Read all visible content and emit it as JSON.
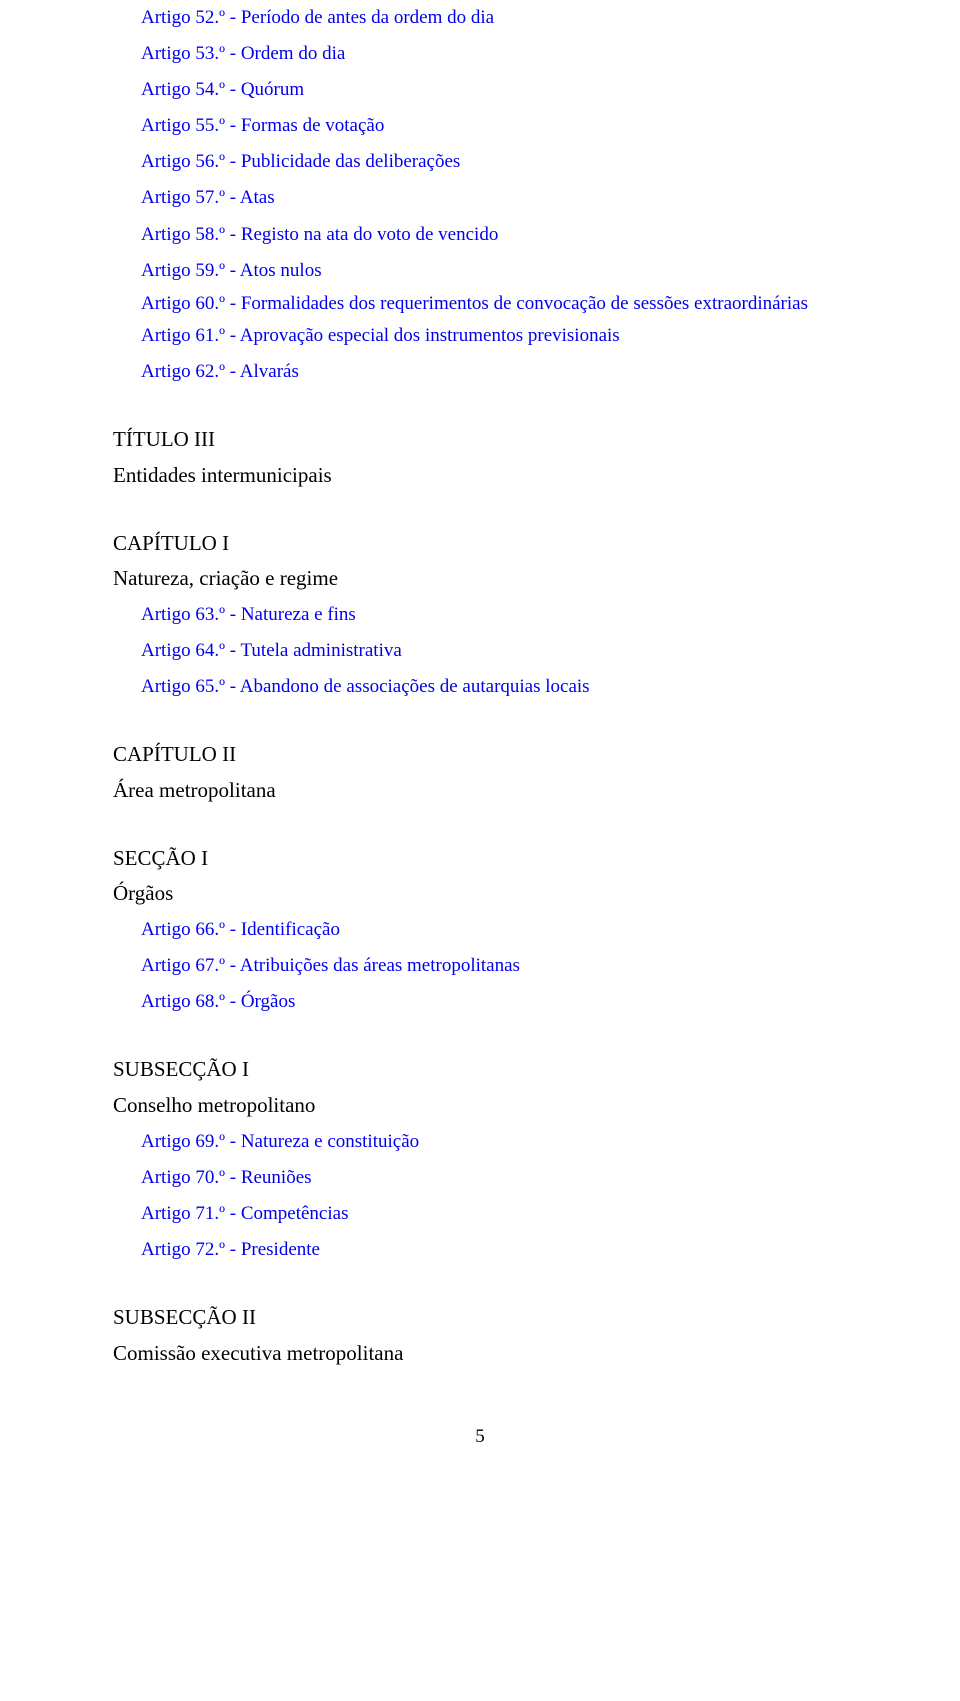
{
  "articles_top": [
    "Artigo 52.º - Período de antes da ordem do dia",
    "Artigo 53.º - Ordem do dia",
    "Artigo 54.º - Quórum",
    "Artigo 55.º - Formas de votação",
    "Artigo 56.º - Publicidade das deliberações",
    "Artigo 57.º - Atas",
    "Artigo 58.º - Registo na ata do voto de vencido",
    "Artigo 59.º - Atos nulos"
  ],
  "article_60": "Artigo 60.º - Formalidades dos requerimentos de convocação de sessões extraordinárias",
  "articles_after60": [
    "Artigo 61.º - Aprovação especial dos instrumentos previsionais",
    "Artigo 62.º - Alvarás"
  ],
  "titulo3": {
    "title": "TÍTULO III",
    "subtitle": "Entidades intermunicipais"
  },
  "cap1": {
    "title": "CAPÍTULO I",
    "subtitle": "Natureza, criação e regime",
    "articles": [
      "Artigo 63.º - Natureza e fins",
      "Artigo 64.º - Tutela administrativa",
      "Artigo 65.º - Abandono de associações de autarquias locais"
    ]
  },
  "cap2": {
    "title": "CAPÍTULO II",
    "subtitle": "Área metropolitana"
  },
  "sec1": {
    "title": "SECÇÃO I",
    "subtitle": "Órgãos",
    "articles": [
      "Artigo 66.º - Identificação",
      "Artigo 67.º - Atribuições das áreas metropolitanas",
      "Artigo 68.º - Órgãos"
    ]
  },
  "subsec1": {
    "title": "SUBSECÇÃO I",
    "subtitle": "Conselho metropolitano",
    "articles": [
      "Artigo 69.º - Natureza e constituição",
      "Artigo 70.º - Reuniões",
      "Artigo 71.º - Competências",
      "Artigo 72.º - Presidente"
    ]
  },
  "subsec2": {
    "title": "SUBSECÇÃO II",
    "subtitle": "Comissão executiva metropolitana"
  },
  "page_number": "5"
}
